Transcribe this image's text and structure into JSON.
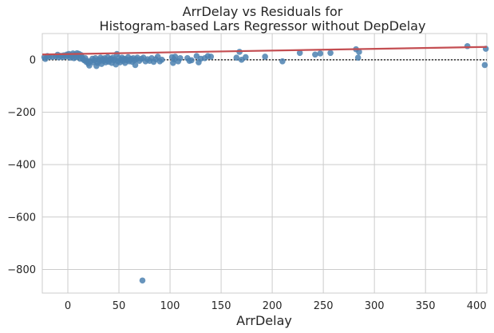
{
  "chart_data": {
    "type": "scatter",
    "title": [
      "ArrDelay vs Residuals for",
      "Histogram-based Lars Regressor without DepDelay"
    ],
    "xlabel": "ArrDelay",
    "ylabel": "",
    "xlim": [
      -25,
      410
    ],
    "ylim": [
      -890,
      100
    ],
    "xticks": [
      0,
      50,
      100,
      150,
      200,
      250,
      300,
      350,
      400
    ],
    "yticks": [
      0,
      -200,
      -400,
      -600,
      -800
    ],
    "grid": true,
    "point_color": "#4c81b0",
    "trend_color": "#c44e52",
    "zero_line_color": "#333333",
    "trend": [
      [
        -25,
        20
      ],
      [
        410,
        49
      ]
    ],
    "points": [
      [
        -23,
        10
      ],
      [
        -22,
        3
      ],
      [
        -20,
        14
      ],
      [
        -18,
        12
      ],
      [
        -15,
        11
      ],
      [
        -12,
        13
      ],
      [
        -10,
        19
      ],
      [
        -9,
        9
      ],
      [
        -7,
        15
      ],
      [
        -5,
        10
      ],
      [
        -4,
        17
      ],
      [
        -2,
        13
      ],
      [
        -1,
        20
      ],
      [
        0,
        16
      ],
      [
        1,
        22
      ],
      [
        2,
        8
      ],
      [
        3,
        18
      ],
      [
        4,
        12
      ],
      [
        5,
        24
      ],
      [
        6,
        6
      ],
      [
        7,
        20
      ],
      [
        8,
        10
      ],
      [
        9,
        25
      ],
      [
        10,
        14
      ],
      [
        11,
        22
      ],
      [
        12,
        4
      ],
      [
        13,
        18
      ],
      [
        14,
        8
      ],
      [
        15,
        2
      ],
      [
        16,
        -2
      ],
      [
        17,
        6
      ],
      [
        18,
        -8
      ],
      [
        19,
        -4
      ],
      [
        20,
        -14
      ],
      [
        21,
        -22
      ],
      [
        22,
        -6
      ],
      [
        24,
        4
      ],
      [
        25,
        -10
      ],
      [
        26,
        -2
      ],
      [
        27,
        6
      ],
      [
        28,
        -24
      ],
      [
        29,
        -12
      ],
      [
        30,
        0
      ],
      [
        31,
        -6
      ],
      [
        32,
        8
      ],
      [
        33,
        -16
      ],
      [
        34,
        2
      ],
      [
        35,
        -4
      ],
      [
        36,
        6
      ],
      [
        37,
        -10
      ],
      [
        38,
        -2
      ],
      [
        39,
        10
      ],
      [
        40,
        -8
      ],
      [
        41,
        0
      ],
      [
        42,
        4
      ],
      [
        43,
        -12
      ],
      [
        44,
        8
      ],
      [
        45,
        -2
      ],
      [
        46,
        2
      ],
      [
        47,
        -18
      ],
      [
        48,
        22
      ],
      [
        49,
        -6
      ],
      [
        50,
        6
      ],
      [
        51,
        -10
      ],
      [
        52,
        0
      ],
      [
        53,
        8
      ],
      [
        54,
        -4
      ],
      [
        55,
        4
      ],
      [
        56,
        -12
      ],
      [
        57,
        2
      ],
      [
        58,
        -2
      ],
      [
        59,
        10
      ],
      [
        60,
        -6
      ],
      [
        61,
        0
      ],
      [
        62,
        4
      ],
      [
        63,
        -8
      ],
      [
        64,
        6
      ],
      [
        65,
        -2
      ],
      [
        66,
        -20
      ],
      [
        67,
        2
      ],
      [
        68,
        8
      ],
      [
        70,
        -4
      ],
      [
        72,
        4
      ],
      [
        73,
        -842
      ],
      [
        74,
        8
      ],
      [
        76,
        -6
      ],
      [
        78,
        2
      ],
      [
        80,
        -4
      ],
      [
        82,
        6
      ],
      [
        84,
        -8
      ],
      [
        86,
        2
      ],
      [
        88,
        12
      ],
      [
        90,
        -6
      ],
      [
        92,
        0
      ],
      [
        102,
        10
      ],
      [
        103,
        -12
      ],
      [
        104,
        2
      ],
      [
        105,
        12
      ],
      [
        108,
        -6
      ],
      [
        110,
        6
      ],
      [
        117,
        6
      ],
      [
        119,
        -4
      ],
      [
        121,
        -2
      ],
      [
        126,
        14
      ],
      [
        128,
        -10
      ],
      [
        130,
        4
      ],
      [
        134,
        6
      ],
      [
        137,
        14
      ],
      [
        140,
        12
      ],
      [
        165,
        8
      ],
      [
        168,
        30
      ],
      [
        170,
        0
      ],
      [
        174,
        10
      ],
      [
        193,
        12
      ],
      [
        210,
        -6
      ],
      [
        227,
        26
      ],
      [
        242,
        20
      ],
      [
        247,
        24
      ],
      [
        257,
        26
      ],
      [
        282,
        40
      ],
      [
        284,
        8
      ],
      [
        285,
        30
      ],
      [
        391,
        52
      ],
      [
        409,
        42
      ],
      [
        408,
        -20
      ]
    ]
  }
}
